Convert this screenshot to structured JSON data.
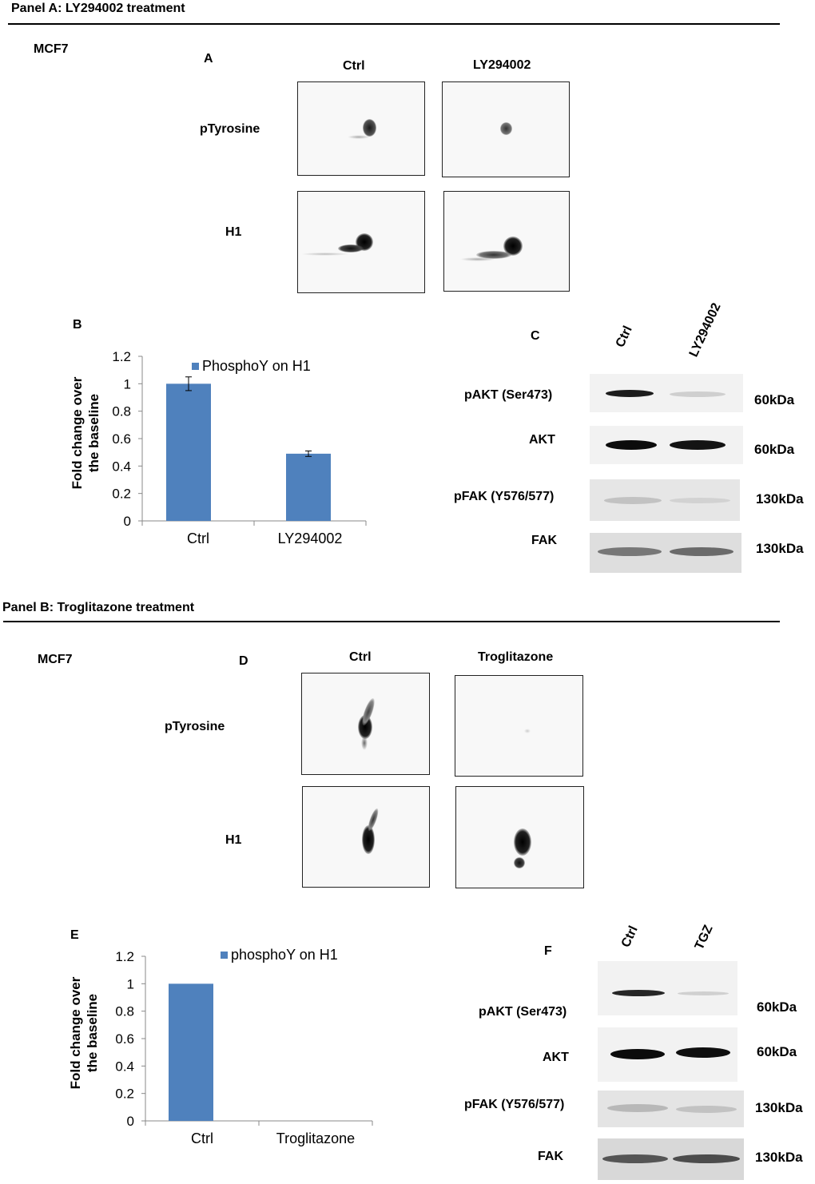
{
  "panel_a": {
    "title": "Panel A: LY294002 treatment",
    "cell_line": "MCF7",
    "A": {
      "letter": "A",
      "columns": [
        "Ctrl",
        "LY294002"
      ],
      "rows": [
        "pTyrosine",
        "H1"
      ]
    },
    "B": {
      "letter": "B"
    },
    "C": {
      "letter": "C",
      "columns": [
        "Ctrl",
        "LY294002"
      ],
      "rows": [
        {
          "label": "pAKT (Ser473)",
          "size": "60kDa"
        },
        {
          "label": "AKT",
          "size": "60kDa"
        },
        {
          "label": "pFAK (Y576/577)",
          "size": "130kDa"
        },
        {
          "label": "FAK",
          "size": "130kDa"
        }
      ]
    }
  },
  "panel_b": {
    "title": "Panel B: Troglitazone treatment",
    "cell_line": "MCF7",
    "D": {
      "letter": "D",
      "columns": [
        "Ctrl",
        "Troglitazone"
      ],
      "rows": [
        "pTyrosine",
        "H1"
      ]
    },
    "E": {
      "letter": "E"
    },
    "F": {
      "letter": "F",
      "columns": [
        "Ctrl",
        "TGZ"
      ],
      "rows": [
        {
          "label": "pAKT (Ser473)",
          "size": "60kDa"
        },
        {
          "label": "AKT",
          "size": "60kDa"
        },
        {
          "label": "pFAK (Y576/577)",
          "size": "130kDa"
        },
        {
          "label": "FAK",
          "size": "130kDa"
        }
      ]
    }
  },
  "chart_data": [
    {
      "type": "bar",
      "categories": [
        "Ctrl",
        "LY294002"
      ],
      "series": [
        {
          "name": "PhosphoY on H1",
          "values": [
            1.0,
            0.49
          ],
          "errors": [
            0.05,
            0.02
          ],
          "color": "#4f81bd"
        }
      ],
      "ylabel": "Fold change over the baseline",
      "ylim": [
        0,
        1.2
      ],
      "yticks": [
        "0",
        "0.2",
        "0.4",
        "0.6",
        "0.8",
        "1",
        "1.2"
      ],
      "legend": "top-right"
    },
    {
      "type": "bar",
      "categories": [
        "Ctrl",
        "Troglitazone"
      ],
      "series": [
        {
          "name": "phosphoY on H1",
          "values": [
            1.0,
            0
          ],
          "color": "#4f81bd"
        }
      ],
      "ylabel": "Fold change over the baseline",
      "ylim": [
        0,
        1.2
      ],
      "yticks": [
        "0",
        "0.2",
        "0.4",
        "0.6",
        "0.8",
        "1",
        "1.2"
      ],
      "legend": "top-right"
    }
  ]
}
